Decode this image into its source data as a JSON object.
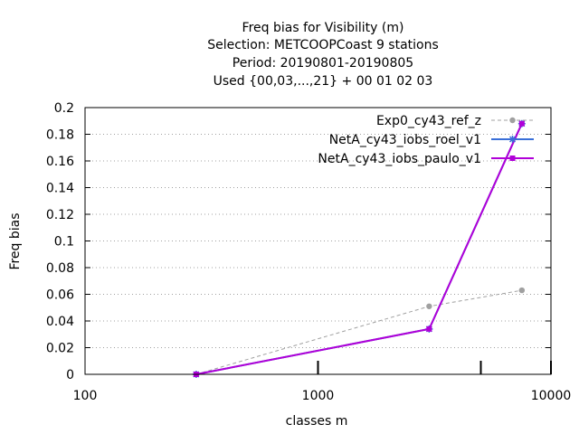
{
  "chart_data": {
    "type": "line",
    "title": [
      "Freq bias  for Visibility (m)",
      "Selection: METCOOPCoast      9 stations",
      "Period: 20190801-20190805",
      "Used {00,03,...,21} + 00 01 02 03"
    ],
    "xlabel": "classes m",
    "ylabel": "Freq bias",
    "x_scale": "log",
    "xlim": [
      100,
      10000
    ],
    "ylim": [
      0,
      0.2
    ],
    "x_ticks": [
      100,
      1000,
      10000
    ],
    "x_tick_labels": [
      "100",
      "1000",
      "10000"
    ],
    "y_ticks": [
      0,
      0.02,
      0.04,
      0.06,
      0.08,
      0.1,
      0.12,
      0.14,
      0.16,
      0.18,
      0.2
    ],
    "y_tick_labels": [
      "0",
      "0.02",
      "0.04",
      "0.06",
      "0.08",
      "0.1",
      "0.12",
      "0.14",
      "0.16",
      "0.18",
      "0.2"
    ],
    "extra_x_marks": [
      1000,
      5000
    ],
    "grid": true,
    "legend_position": "top-right",
    "series": [
      {
        "name": "Exp0_cy43_ref_z",
        "color": "#a0a0a0",
        "dashed": true,
        "marker": "circle",
        "x": [
          300,
          3000,
          7500
        ],
        "y": [
          0.0,
          0.051,
          0.063
        ]
      },
      {
        "name": "NetA_cy43_iobs_roel_v1",
        "color": "#3a6fd8",
        "dashed": false,
        "marker": "star",
        "x": [
          300,
          3000,
          7500
        ],
        "y": [
          0.0,
          0.034,
          0.188
        ]
      },
      {
        "name": "NetA_cy43_iobs_paulo_v1",
        "color": "#b000d8",
        "dashed": false,
        "marker": "square",
        "x": [
          300,
          3000,
          7500
        ],
        "y": [
          0.0,
          0.034,
          0.188
        ]
      }
    ]
  }
}
